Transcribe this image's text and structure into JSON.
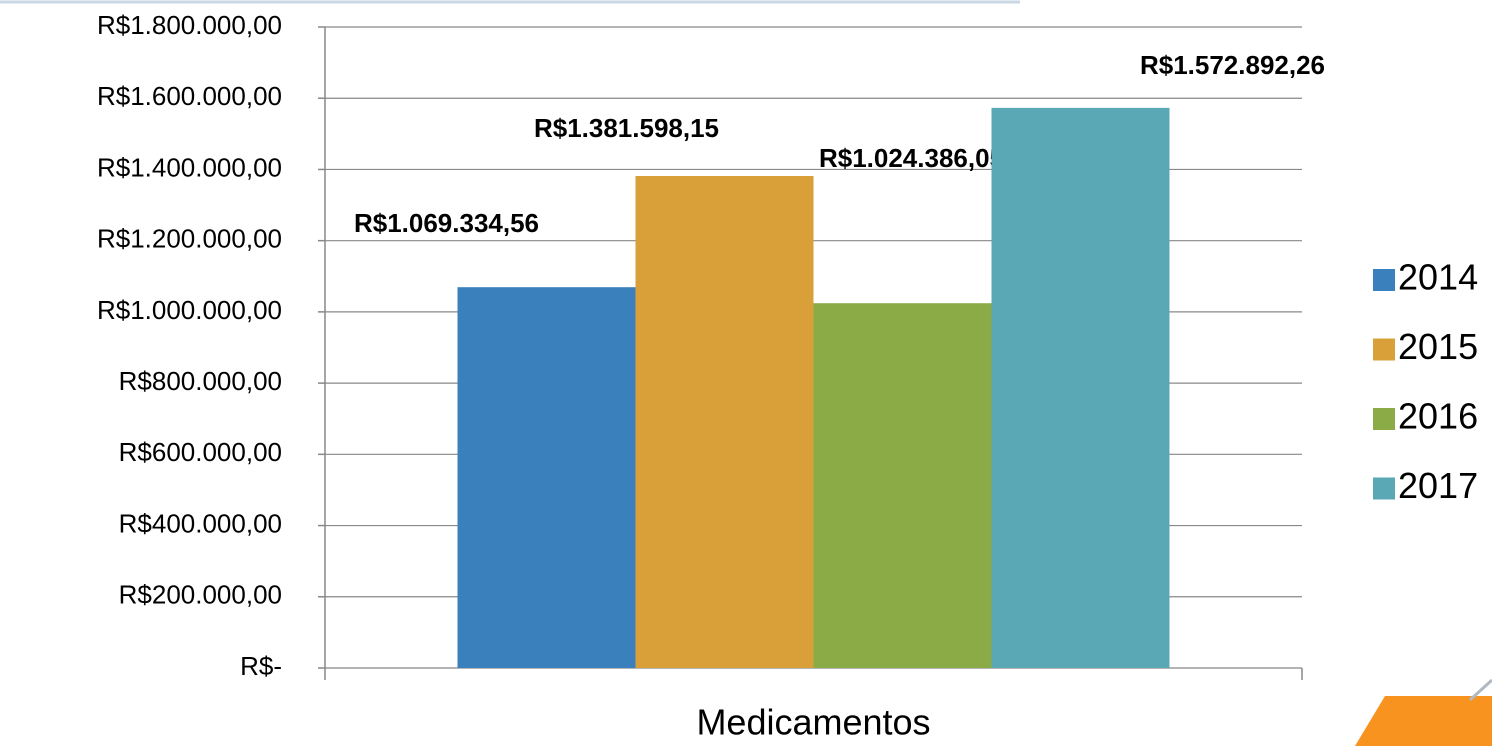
{
  "chart_data": {
    "type": "bar",
    "categories": [
      "Medicamentos"
    ],
    "series": [
      {
        "name": "2014",
        "color": "#3a80bc",
        "values": [
          1069334.56
        ],
        "value_labels": [
          "R$1.069.334,56"
        ]
      },
      {
        "name": "2015",
        "color": "#d9a03a",
        "values": [
          1381598.15
        ],
        "value_labels": [
          "R$1.381.598,15"
        ]
      },
      {
        "name": "2016",
        "color": "#8aab45",
        "values": [
          1024386.05
        ],
        "value_labels": [
          "R$1.024.386,05"
        ]
      },
      {
        "name": "2017",
        "color": "#5aa8b5",
        "values": [
          1572892.26
        ],
        "value_labels": [
          "R$1.572.892,26"
        ]
      }
    ],
    "ylim": [
      0,
      1800000
    ],
    "yticks": [
      {
        "value": 0,
        "label": "R$-"
      },
      {
        "value": 200000,
        "label": "R$200.000,00"
      },
      {
        "value": 400000,
        "label": "R$400.000,00"
      },
      {
        "value": 600000,
        "label": "R$600.000,00"
      },
      {
        "value": 800000,
        "label": "R$800.000,00"
      },
      {
        "value": 1000000,
        "label": "R$1.000.000,00"
      },
      {
        "value": 1200000,
        "label": "R$1.200.000,00"
      },
      {
        "value": 1400000,
        "label": "R$1.400.000,00"
      },
      {
        "value": 1600000,
        "label": "R$1.600.000,00"
      },
      {
        "value": 1800000,
        "label": "R$1.800.000,00"
      }
    ],
    "grid": true,
    "legend": "right"
  }
}
